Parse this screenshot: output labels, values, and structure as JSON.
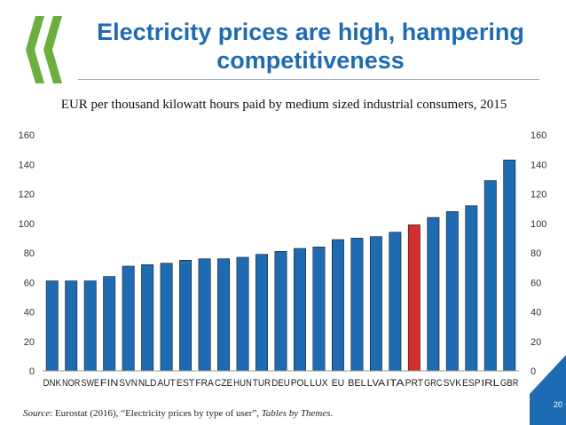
{
  "page": {
    "title": "Electricity prices are high, hampering competitiveness",
    "page_number": "20",
    "source_prefix": "Source",
    "source_body": ": Eurostat (2016), “Electricity prices by type of user”, ",
    "source_publication": "Tables by Themes",
    "source_end": "."
  },
  "colors": {
    "title": "#1f6bb3",
    "bar_default": "#1f6bb3",
    "bar_highlight": "#d32f2f",
    "logo_green": "#6cae3f",
    "badge": "#1f6bb3"
  },
  "chart_data": {
    "type": "bar",
    "title": "EUR per thousand kilowatt hours paid by medium sized industrial consumers, 2015",
    "categories": [
      "DNK",
      "NOR",
      "SWE",
      "FIN",
      "SVN",
      "NLD",
      "AUT",
      "EST",
      "FRA",
      "CZE",
      "HUN",
      "TUR",
      "DEU",
      "POL",
      "LUX",
      "EU",
      "BEL",
      "LVA",
      "ITA",
      "PRT",
      "GRC",
      "SVK",
      "ESP",
      "IRL",
      "GBR"
    ],
    "values": [
      61,
      61,
      61,
      64,
      71,
      72,
      73,
      75,
      76,
      76,
      77,
      79,
      81,
      83,
      84,
      89,
      90,
      91,
      94,
      99,
      104,
      108,
      112,
      129,
      143
    ],
    "highlight": [
      "PRT"
    ],
    "ylim": [
      0,
      160
    ],
    "yticks": [
      0,
      20,
      40,
      60,
      80,
      100,
      120,
      140,
      160
    ],
    "ytick_labels": [
      "0",
      "20",
      "40",
      "60",
      "80",
      "100",
      "120",
      "140",
      "160"
    ],
    "secondary_y_axis": true,
    "grid": false,
    "legend": "none"
  }
}
